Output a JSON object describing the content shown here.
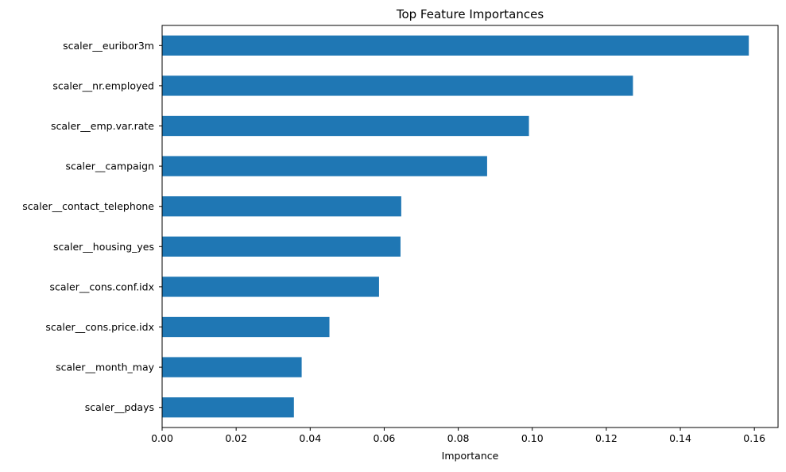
{
  "chart_data": {
    "type": "bar",
    "orientation": "horizontal",
    "title": "Top Feature Importances",
    "xlabel": "Importance",
    "ylabel": "",
    "xlim": [
      0,
      0.1664
    ],
    "xticks": [
      0.0,
      0.02,
      0.04,
      0.06,
      0.08,
      0.1,
      0.12,
      0.14,
      0.16
    ],
    "xtick_labels": [
      "0.00",
      "0.02",
      "0.04",
      "0.06",
      "0.08",
      "0.10",
      "0.12",
      "0.14",
      "0.16"
    ],
    "grid": false,
    "bar_color": "#1f77b4",
    "categories": [
      "scaler__euribor3m",
      "scaler__nr.employed",
      "scaler__emp.var.rate",
      "scaler__campaign",
      "scaler__contact_telephone",
      "scaler__housing_yes",
      "scaler__cons.conf.idx",
      "scaler__cons.price.idx",
      "scaler__month_may",
      "scaler__pdays"
    ],
    "values": [
      0.1585,
      0.1272,
      0.0991,
      0.0878,
      0.0646,
      0.0644,
      0.0586,
      0.0452,
      0.0377,
      0.0356
    ]
  }
}
